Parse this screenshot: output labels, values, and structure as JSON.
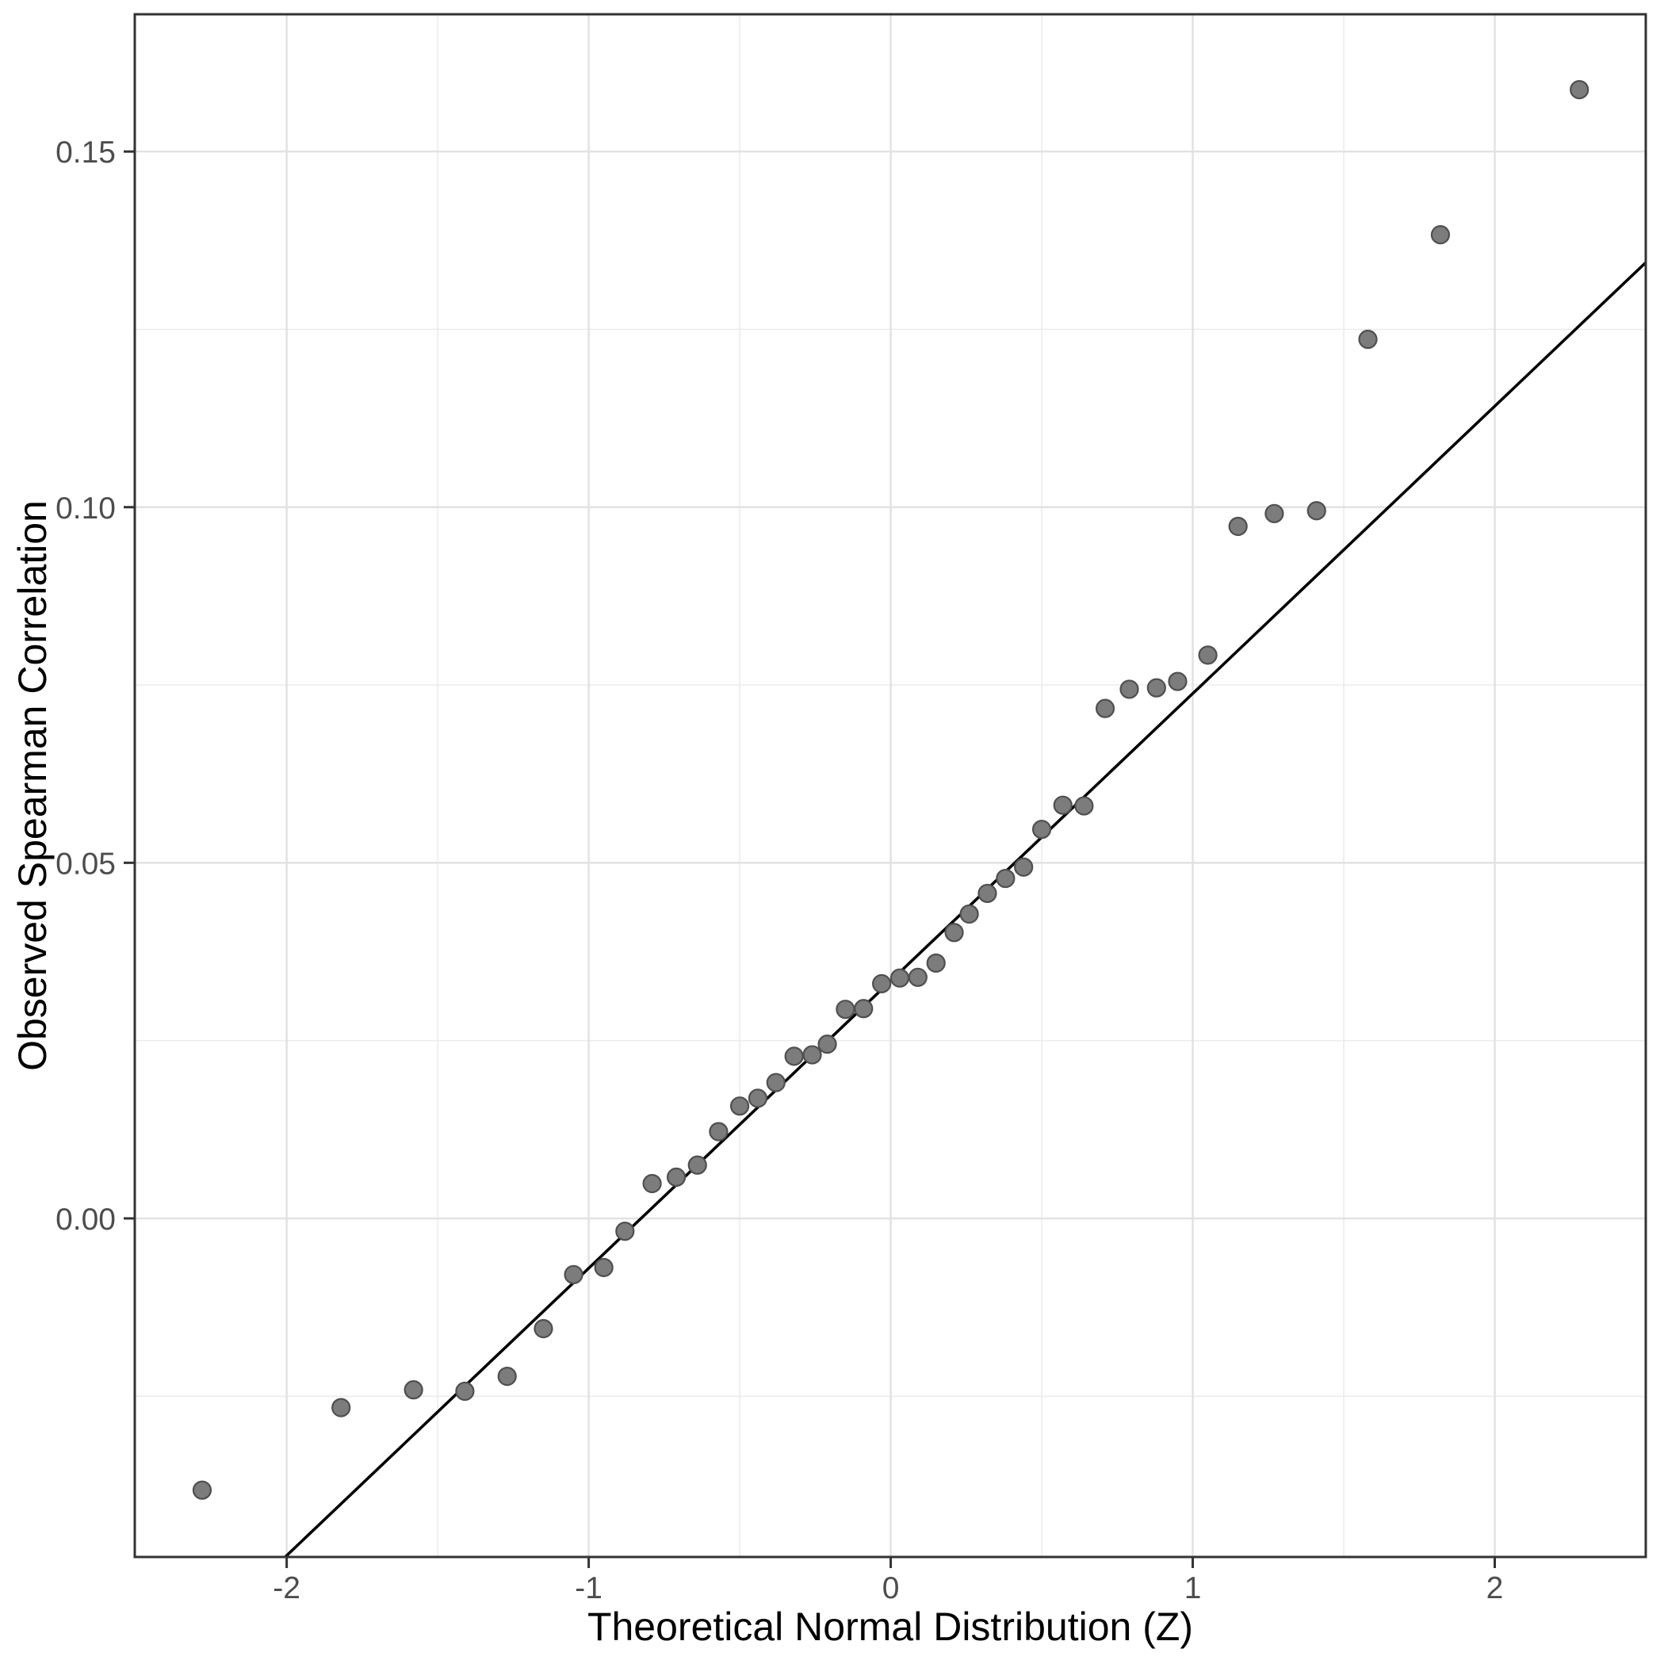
{
  "chart_data": {
    "type": "scatter",
    "title": "",
    "xlabel": "Theoretical Normal Distribution (Z)",
    "ylabel": "Observed Spearman Correlation",
    "xlim": [
      -2.503,
      2.5
    ],
    "ylim": [
      -0.0476,
      0.1693
    ],
    "grid": true,
    "legend_position": "none",
    "x_ticks": {
      "values": [
        -2,
        -1,
        0,
        1,
        2
      ],
      "labels": [
        "-2",
        "-1",
        "0",
        "1",
        "2"
      ]
    },
    "y_ticks": {
      "values": [
        0.0,
        0.05,
        0.1,
        0.15
      ],
      "labels": [
        "0.00",
        "0.05",
        "0.10",
        "0.15"
      ]
    },
    "x_minor_gridlines": [
      -1.5,
      -0.5,
      0.5,
      1.5
    ],
    "y_minor_gridlines": [
      -0.025,
      0.025,
      0.075,
      0.125
    ],
    "series": [
      {
        "name": "observed-vs-theoretical-quantiles",
        "points": [
          [
            -2.28,
            -0.0382
          ],
          [
            -1.82,
            -0.0266
          ],
          [
            -1.58,
            -0.0241
          ],
          [
            -1.41,
            -0.0243
          ],
          [
            -1.27,
            -0.0222
          ],
          [
            -1.15,
            -0.0155
          ],
          [
            -1.05,
            -0.0079
          ],
          [
            -0.95,
            -0.0069
          ],
          [
            -0.88,
            -0.0018
          ],
          [
            -0.79,
            0.0049
          ],
          [
            -0.71,
            0.0058
          ],
          [
            -0.64,
            0.0075
          ],
          [
            -0.57,
            0.0122
          ],
          [
            -0.5,
            0.0158
          ],
          [
            -0.44,
            0.0169
          ],
          [
            -0.38,
            0.0191
          ],
          [
            -0.32,
            0.0228
          ],
          [
            -0.26,
            0.023
          ],
          [
            -0.21,
            0.0245
          ],
          [
            -0.15,
            0.0294
          ],
          [
            -0.09,
            0.0295
          ],
          [
            -0.03,
            0.033
          ],
          [
            0.03,
            0.0338
          ],
          [
            0.09,
            0.0339
          ],
          [
            0.15,
            0.0359
          ],
          [
            0.21,
            0.0402
          ],
          [
            0.26,
            0.0428
          ],
          [
            0.32,
            0.0457
          ],
          [
            0.38,
            0.0478
          ],
          [
            0.44,
            0.0494
          ],
          [
            0.5,
            0.0547
          ],
          [
            0.57,
            0.0581
          ],
          [
            0.64,
            0.058
          ],
          [
            0.71,
            0.0717
          ],
          [
            0.79,
            0.0744
          ],
          [
            0.88,
            0.0746
          ],
          [
            0.95,
            0.0755
          ],
          [
            1.05,
            0.0792
          ],
          [
            1.15,
            0.0973
          ],
          [
            1.27,
            0.0991
          ],
          [
            1.41,
            0.0995
          ],
          [
            1.58,
            0.1236
          ],
          [
            1.82,
            0.1383
          ],
          [
            2.28,
            0.1587
          ]
        ]
      }
    ],
    "reference_line": {
      "intercept": 0.0334,
      "slope": 0.0404
    },
    "colors": {
      "background": "#ffffff",
      "panel_background": "#ffffff",
      "panel_border": "#333333",
      "grid_major": "#e2e2e2",
      "grid_minor": "#ebebeb",
      "reference_line": "#000000",
      "point_fill": "#7c7c7c",
      "point_stroke": "#4f4f4f",
      "tick_mark": "#333333",
      "tick_label": "#4d4d4d",
      "axis_title": "#000000"
    }
  }
}
